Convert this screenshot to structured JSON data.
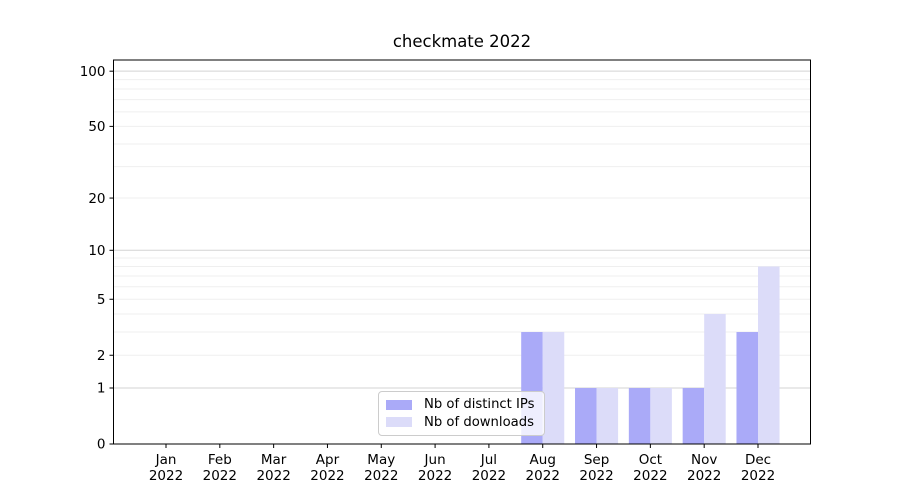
{
  "chart_data": {
    "type": "bar",
    "title": "checkmate 2022",
    "categories": [
      "Jan",
      "Feb",
      "Mar",
      "Apr",
      "May",
      "Jun",
      "Jul",
      "Aug",
      "Sep",
      "Oct",
      "Nov",
      "Dec"
    ],
    "x_sublabel": "2022",
    "series": [
      {
        "name": "Nb of distinct IPs",
        "color": "#aaaaf8",
        "values": [
          0,
          0,
          0,
          0,
          0,
          0,
          0,
          3,
          1,
          1,
          1,
          3
        ]
      },
      {
        "name": "Nb of downloads",
        "color": "#dcdcf9",
        "values": [
          0,
          0,
          0,
          0,
          0,
          0,
          0,
          3,
          1,
          1,
          4,
          8
        ]
      }
    ],
    "yscale": "log1p",
    "ylim": [
      0,
      115
    ],
    "yticks": [
      0,
      1,
      2,
      5,
      10,
      20,
      50,
      100
    ],
    "major_gridlines": [
      1,
      10,
      100
    ],
    "minor_gridlines": [
      2,
      3,
      4,
      5,
      6,
      7,
      8,
      9,
      20,
      30,
      40,
      50,
      60,
      70,
      80,
      90
    ],
    "grid": true,
    "legend_position": "lower center",
    "style": {
      "grid_minor_color": "#efefef",
      "grid_major_color": "#d3d3d3",
      "spine_color": "#000000",
      "text_color": "#000000",
      "legend_border_color": "#cccccc",
      "background_color": "#ffffff"
    }
  }
}
